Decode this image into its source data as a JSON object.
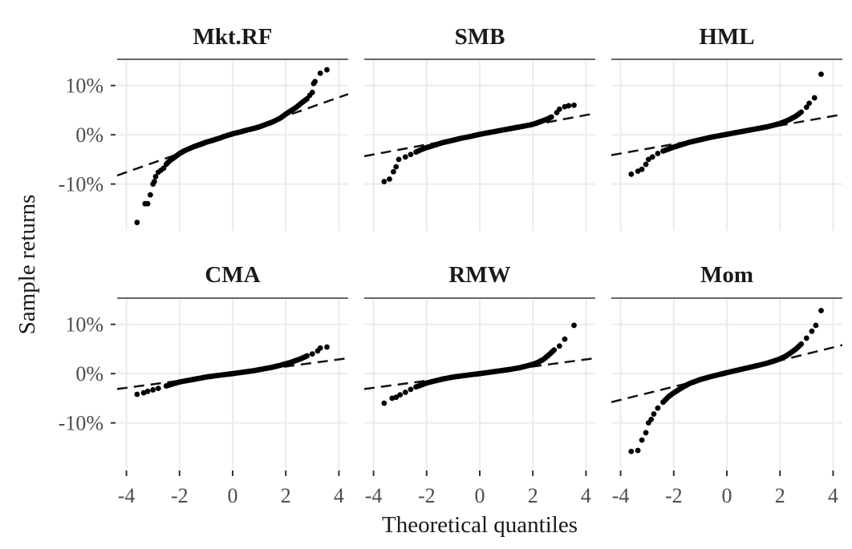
{
  "chart_data": {
    "type": "scatter",
    "subtype": "qq-plot facet grid",
    "xlabel": "Theoretical quantiles",
    "ylabel": "Sample returns",
    "xlim": [
      -4.35,
      4.35
    ],
    "ylim": [
      -19.5,
      15
    ],
    "xticks": [
      -4,
      -2,
      0,
      2,
      4
    ],
    "xtick_labels": [
      "-4",
      "-2",
      "0",
      "2",
      "4"
    ],
    "yticks": [
      10,
      0,
      -10
    ],
    "ytick_labels": [
      "10%",
      "0%",
      "-10%"
    ],
    "grid": true,
    "reference_line_style": "dashed",
    "panels": [
      {
        "title": "Mkt.RF",
        "line": {
          "intercept": 0.0,
          "slope": 1.9
        },
        "points": [
          [
            -3.6,
            -17.8
          ],
          [
            -3.3,
            -14
          ],
          [
            -3.2,
            -14
          ],
          [
            -3.1,
            -12.2
          ],
          [
            -3.0,
            -10
          ],
          [
            -2.95,
            -9.5
          ],
          [
            -2.9,
            -8.5
          ],
          [
            -2.8,
            -7.6
          ],
          [
            -2.7,
            -7.2
          ],
          [
            -2.6,
            -6.8
          ],
          [
            -2.5,
            -6.0
          ],
          [
            -2.4,
            -5.4
          ],
          [
            -2.3,
            -5.0
          ],
          [
            -2.2,
            -4.6
          ],
          [
            -2.0,
            -3.8
          ],
          [
            -1.8,
            -3.2
          ],
          [
            -1.5,
            -2.5
          ],
          [
            -1.2,
            -1.9
          ],
          [
            -1.0,
            -1.5
          ],
          [
            -0.8,
            -1.2
          ],
          [
            -0.5,
            -0.7
          ],
          [
            -0.3,
            -0.3
          ],
          [
            0,
            0.2
          ],
          [
            0.3,
            0.6
          ],
          [
            0.5,
            0.9
          ],
          [
            0.8,
            1.3
          ],
          [
            1.0,
            1.6
          ],
          [
            1.2,
            2.0
          ],
          [
            1.5,
            2.6
          ],
          [
            1.8,
            3.4
          ],
          [
            2.0,
            4.2
          ],
          [
            2.2,
            4.9
          ],
          [
            2.4,
            5.6
          ],
          [
            2.6,
            6.5
          ],
          [
            2.8,
            7.3
          ],
          [
            2.9,
            8.0
          ],
          [
            3.0,
            8.6
          ],
          [
            3.05,
            10.4
          ],
          [
            3.1,
            10.8
          ],
          [
            3.3,
            12.5
          ],
          [
            3.55,
            13.2
          ]
        ]
      },
      {
        "title": "SMB",
        "line": {
          "intercept": 0.0,
          "slope": 1.0
        },
        "points": [
          [
            -3.6,
            -9.5
          ],
          [
            -3.4,
            -9.0
          ],
          [
            -3.25,
            -7.5
          ],
          [
            -3.15,
            -6.5
          ],
          [
            -3.05,
            -5.0
          ],
          [
            -2.8,
            -4.5
          ],
          [
            -2.6,
            -4.0
          ],
          [
            -2.4,
            -3.5
          ],
          [
            -2.2,
            -3.0
          ],
          [
            -2.0,
            -2.6
          ],
          [
            -1.7,
            -2.1
          ],
          [
            -1.4,
            -1.6
          ],
          [
            -1.0,
            -1.1
          ],
          [
            -0.7,
            -0.7
          ],
          [
            -0.4,
            -0.4
          ],
          [
            0,
            0.1
          ],
          [
            0.4,
            0.5
          ],
          [
            0.7,
            0.8
          ],
          [
            1.0,
            1.1
          ],
          [
            1.3,
            1.4
          ],
          [
            1.6,
            1.7
          ],
          [
            1.9,
            2.0
          ],
          [
            2.1,
            2.3
          ],
          [
            2.3,
            2.7
          ],
          [
            2.5,
            3.1
          ],
          [
            2.7,
            3.6
          ],
          [
            2.9,
            4.5
          ],
          [
            3.0,
            5.2
          ],
          [
            3.2,
            5.7
          ],
          [
            3.35,
            5.9
          ],
          [
            3.55,
            6.0
          ]
        ]
      },
      {
        "title": "HML",
        "line": {
          "intercept": 0.0,
          "slope": 0.95
        },
        "points": [
          [
            -3.6,
            -8.0
          ],
          [
            -3.35,
            -7.4
          ],
          [
            -3.2,
            -7.0
          ],
          [
            -3.05,
            -6.0
          ],
          [
            -2.95,
            -5.0
          ],
          [
            -2.8,
            -4.5
          ],
          [
            -2.6,
            -3.8
          ],
          [
            -2.4,
            -3.3
          ],
          [
            -2.2,
            -2.9
          ],
          [
            -2.0,
            -2.5
          ],
          [
            -1.7,
            -2.0
          ],
          [
            -1.4,
            -1.5
          ],
          [
            -1.0,
            -1.0
          ],
          [
            -0.6,
            -0.5
          ],
          [
            -0.3,
            -0.2
          ],
          [
            0,
            0.1
          ],
          [
            0.4,
            0.5
          ],
          [
            0.8,
            0.9
          ],
          [
            1.2,
            1.3
          ],
          [
            1.5,
            1.6
          ],
          [
            1.8,
            2.0
          ],
          [
            2.0,
            2.3
          ],
          [
            2.2,
            2.7
          ],
          [
            2.4,
            3.2
          ],
          [
            2.6,
            3.8
          ],
          [
            2.8,
            4.6
          ],
          [
            3.0,
            5.6
          ],
          [
            3.1,
            6.4
          ],
          [
            3.3,
            7.5
          ],
          [
            3.55,
            12.3
          ]
        ]
      },
      {
        "title": "CMA",
        "line": {
          "intercept": 0.0,
          "slope": 0.72
        },
        "points": [
          [
            -3.6,
            -4.2
          ],
          [
            -3.35,
            -3.9
          ],
          [
            -3.2,
            -3.6
          ],
          [
            -3.0,
            -3.3
          ],
          [
            -2.8,
            -3.0
          ],
          [
            -2.5,
            -2.5
          ],
          [
            -2.2,
            -2.0
          ],
          [
            -2.0,
            -1.7
          ],
          [
            -1.7,
            -1.4
          ],
          [
            -1.4,
            -1.1
          ],
          [
            -1.0,
            -0.7
          ],
          [
            -0.6,
            -0.4
          ],
          [
            -0.3,
            -0.2
          ],
          [
            0,
            0.0
          ],
          [
            0.4,
            0.3
          ],
          [
            0.8,
            0.6
          ],
          [
            1.2,
            1.0
          ],
          [
            1.5,
            1.3
          ],
          [
            1.8,
            1.7
          ],
          [
            2.0,
            2.0
          ],
          [
            2.2,
            2.3
          ],
          [
            2.4,
            2.7
          ],
          [
            2.6,
            3.1
          ],
          [
            2.8,
            3.6
          ],
          [
            3.0,
            4.0
          ],
          [
            3.2,
            4.6
          ],
          [
            3.3,
            5.2
          ],
          [
            3.55,
            5.4
          ]
        ]
      },
      {
        "title": "RMW",
        "line": {
          "intercept": 0.0,
          "slope": 0.72
        },
        "points": [
          [
            -3.6,
            -6.0
          ],
          [
            -3.3,
            -5.0
          ],
          [
            -3.15,
            -4.8
          ],
          [
            -3.0,
            -4.3
          ],
          [
            -2.8,
            -3.8
          ],
          [
            -2.6,
            -3.2
          ],
          [
            -2.4,
            -2.7
          ],
          [
            -2.2,
            -2.3
          ],
          [
            -2.0,
            -1.9
          ],
          [
            -1.7,
            -1.5
          ],
          [
            -1.4,
            -1.1
          ],
          [
            -1.0,
            -0.7
          ],
          [
            -0.6,
            -0.4
          ],
          [
            -0.3,
            -0.2
          ],
          [
            0,
            0.0
          ],
          [
            0.4,
            0.3
          ],
          [
            0.8,
            0.6
          ],
          [
            1.2,
            0.9
          ],
          [
            1.5,
            1.2
          ],
          [
            1.8,
            1.6
          ],
          [
            2.0,
            1.9
          ],
          [
            2.2,
            2.3
          ],
          [
            2.4,
            2.9
          ],
          [
            2.6,
            3.8
          ],
          [
            2.8,
            4.8
          ],
          [
            3.0,
            5.6
          ],
          [
            3.2,
            7.0
          ],
          [
            3.55,
            9.8
          ]
        ]
      },
      {
        "title": "Mom",
        "line": {
          "intercept": 0.0,
          "slope": 1.33
        },
        "points": [
          [
            -3.6,
            -15.8
          ],
          [
            -3.35,
            -15.6
          ],
          [
            -3.2,
            -13.5
          ],
          [
            -3.05,
            -12.0
          ],
          [
            -2.95,
            -10.0
          ],
          [
            -2.85,
            -9.3
          ],
          [
            -2.75,
            -8.2
          ],
          [
            -2.6,
            -7.0
          ],
          [
            -2.4,
            -5.8
          ],
          [
            -2.2,
            -4.7
          ],
          [
            -2.0,
            -3.9
          ],
          [
            -1.7,
            -2.9
          ],
          [
            -1.4,
            -2.0
          ],
          [
            -1.0,
            -1.2
          ],
          [
            -0.6,
            -0.6
          ],
          [
            -0.3,
            -0.2
          ],
          [
            0,
            0.2
          ],
          [
            0.4,
            0.7
          ],
          [
            0.8,
            1.2
          ],
          [
            1.2,
            1.7
          ],
          [
            1.5,
            2.1
          ],
          [
            1.8,
            2.6
          ],
          [
            2.0,
            3.0
          ],
          [
            2.2,
            3.5
          ],
          [
            2.4,
            4.2
          ],
          [
            2.6,
            5.0
          ],
          [
            2.8,
            6.0
          ],
          [
            3.0,
            7.2
          ],
          [
            3.2,
            8.6
          ],
          [
            3.35,
            9.8
          ],
          [
            3.55,
            12.8
          ]
        ]
      }
    ]
  }
}
